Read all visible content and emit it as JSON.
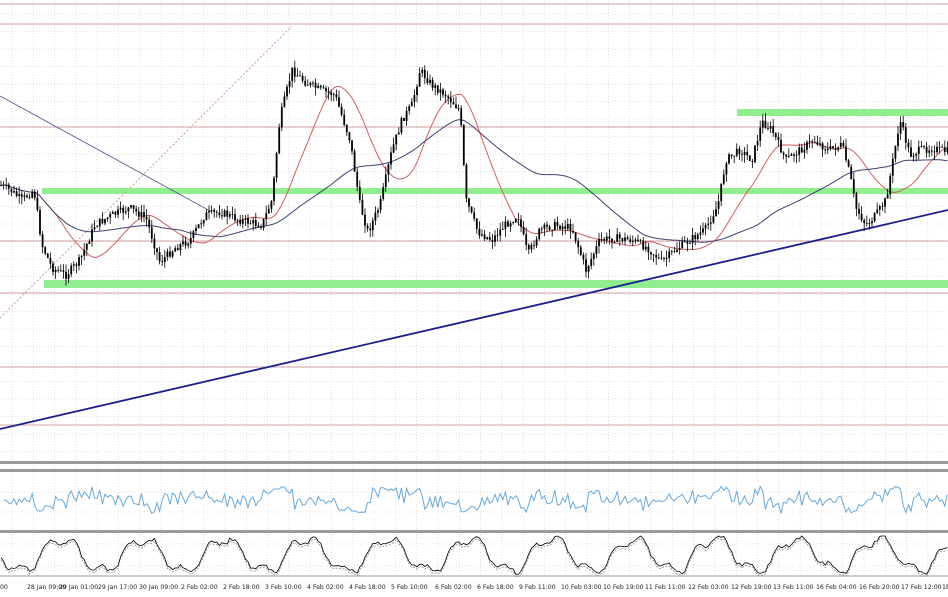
{
  "chart_data": {
    "type": "candlestick",
    "grid": true,
    "x_tick_labels": [
      "00",
      "28 Jan 09:00",
      "29 Jan 01:00",
      "29 Jan 17:00",
      "30 Jan 09:00",
      "2 Feb 02:00",
      "2 Feb 18:00",
      "3 Feb 10:00",
      "4 Feb 02:00",
      "4 Feb 18:00",
      "5 Feb 10:00",
      "6 Feb 02:00",
      "6 Feb 18:00",
      "9 Feb 11:00",
      "10 Feb 03:00",
      "10 Feb 19:00",
      "11 Feb 11:00",
      "12 Feb 03:00",
      "12 Feb 19:00",
      "13 Feb 11:00",
      "16 Feb 04:00",
      "16 Feb 20:00",
      "17 Feb 12:00",
      "18"
    ],
    "colors": {
      "candle": "#000000",
      "support_resistance": "#90ee90",
      "trendline": "#1e1e8c",
      "ma_fast": "#d06060",
      "ma_slow": "#404070",
      "horizontal_levels": "#c08080",
      "rsi": "#6aa8d8",
      "stochastic": "#000000"
    },
    "panels": [
      "price",
      "rsi",
      "stochastic"
    ]
  }
}
